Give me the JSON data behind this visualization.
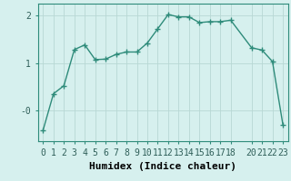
{
  "x": [
    0,
    1,
    2,
    3,
    4,
    5,
    6,
    7,
    8,
    9,
    10,
    11,
    12,
    13,
    14,
    15,
    16,
    17,
    18,
    20,
    21,
    22,
    23
  ],
  "y": [
    -0.42,
    0.35,
    0.52,
    1.28,
    1.38,
    1.07,
    1.08,
    1.18,
    1.23,
    1.23,
    1.42,
    1.72,
    2.02,
    1.97,
    1.97,
    1.85,
    1.87,
    1.87,
    1.9,
    1.32,
    1.27,
    1.03,
    -0.3
  ],
  "xlabel": "Humidex (Indice chaleur)",
  "xticks": [
    0,
    1,
    2,
    3,
    4,
    5,
    6,
    7,
    8,
    9,
    10,
    11,
    12,
    13,
    14,
    15,
    16,
    17,
    18,
    20,
    21,
    22,
    23
  ],
  "ytick_labels": [
    "-0",
    "1",
    "2"
  ],
  "ytick_vals": [
    -0.0,
    1.0,
    2.0
  ],
  "ylim": [
    -0.65,
    2.25
  ],
  "xlim": [
    -0.5,
    23.5
  ],
  "line_color": "#2e8b7a",
  "bg_color": "#d6f0ee",
  "grid_color": "#b8d8d4",
  "marker": "+",
  "marker_size": 4,
  "marker_lw": 1.0,
  "line_width": 1.0,
  "xlabel_fontsize": 8,
  "tick_fontsize": 7
}
